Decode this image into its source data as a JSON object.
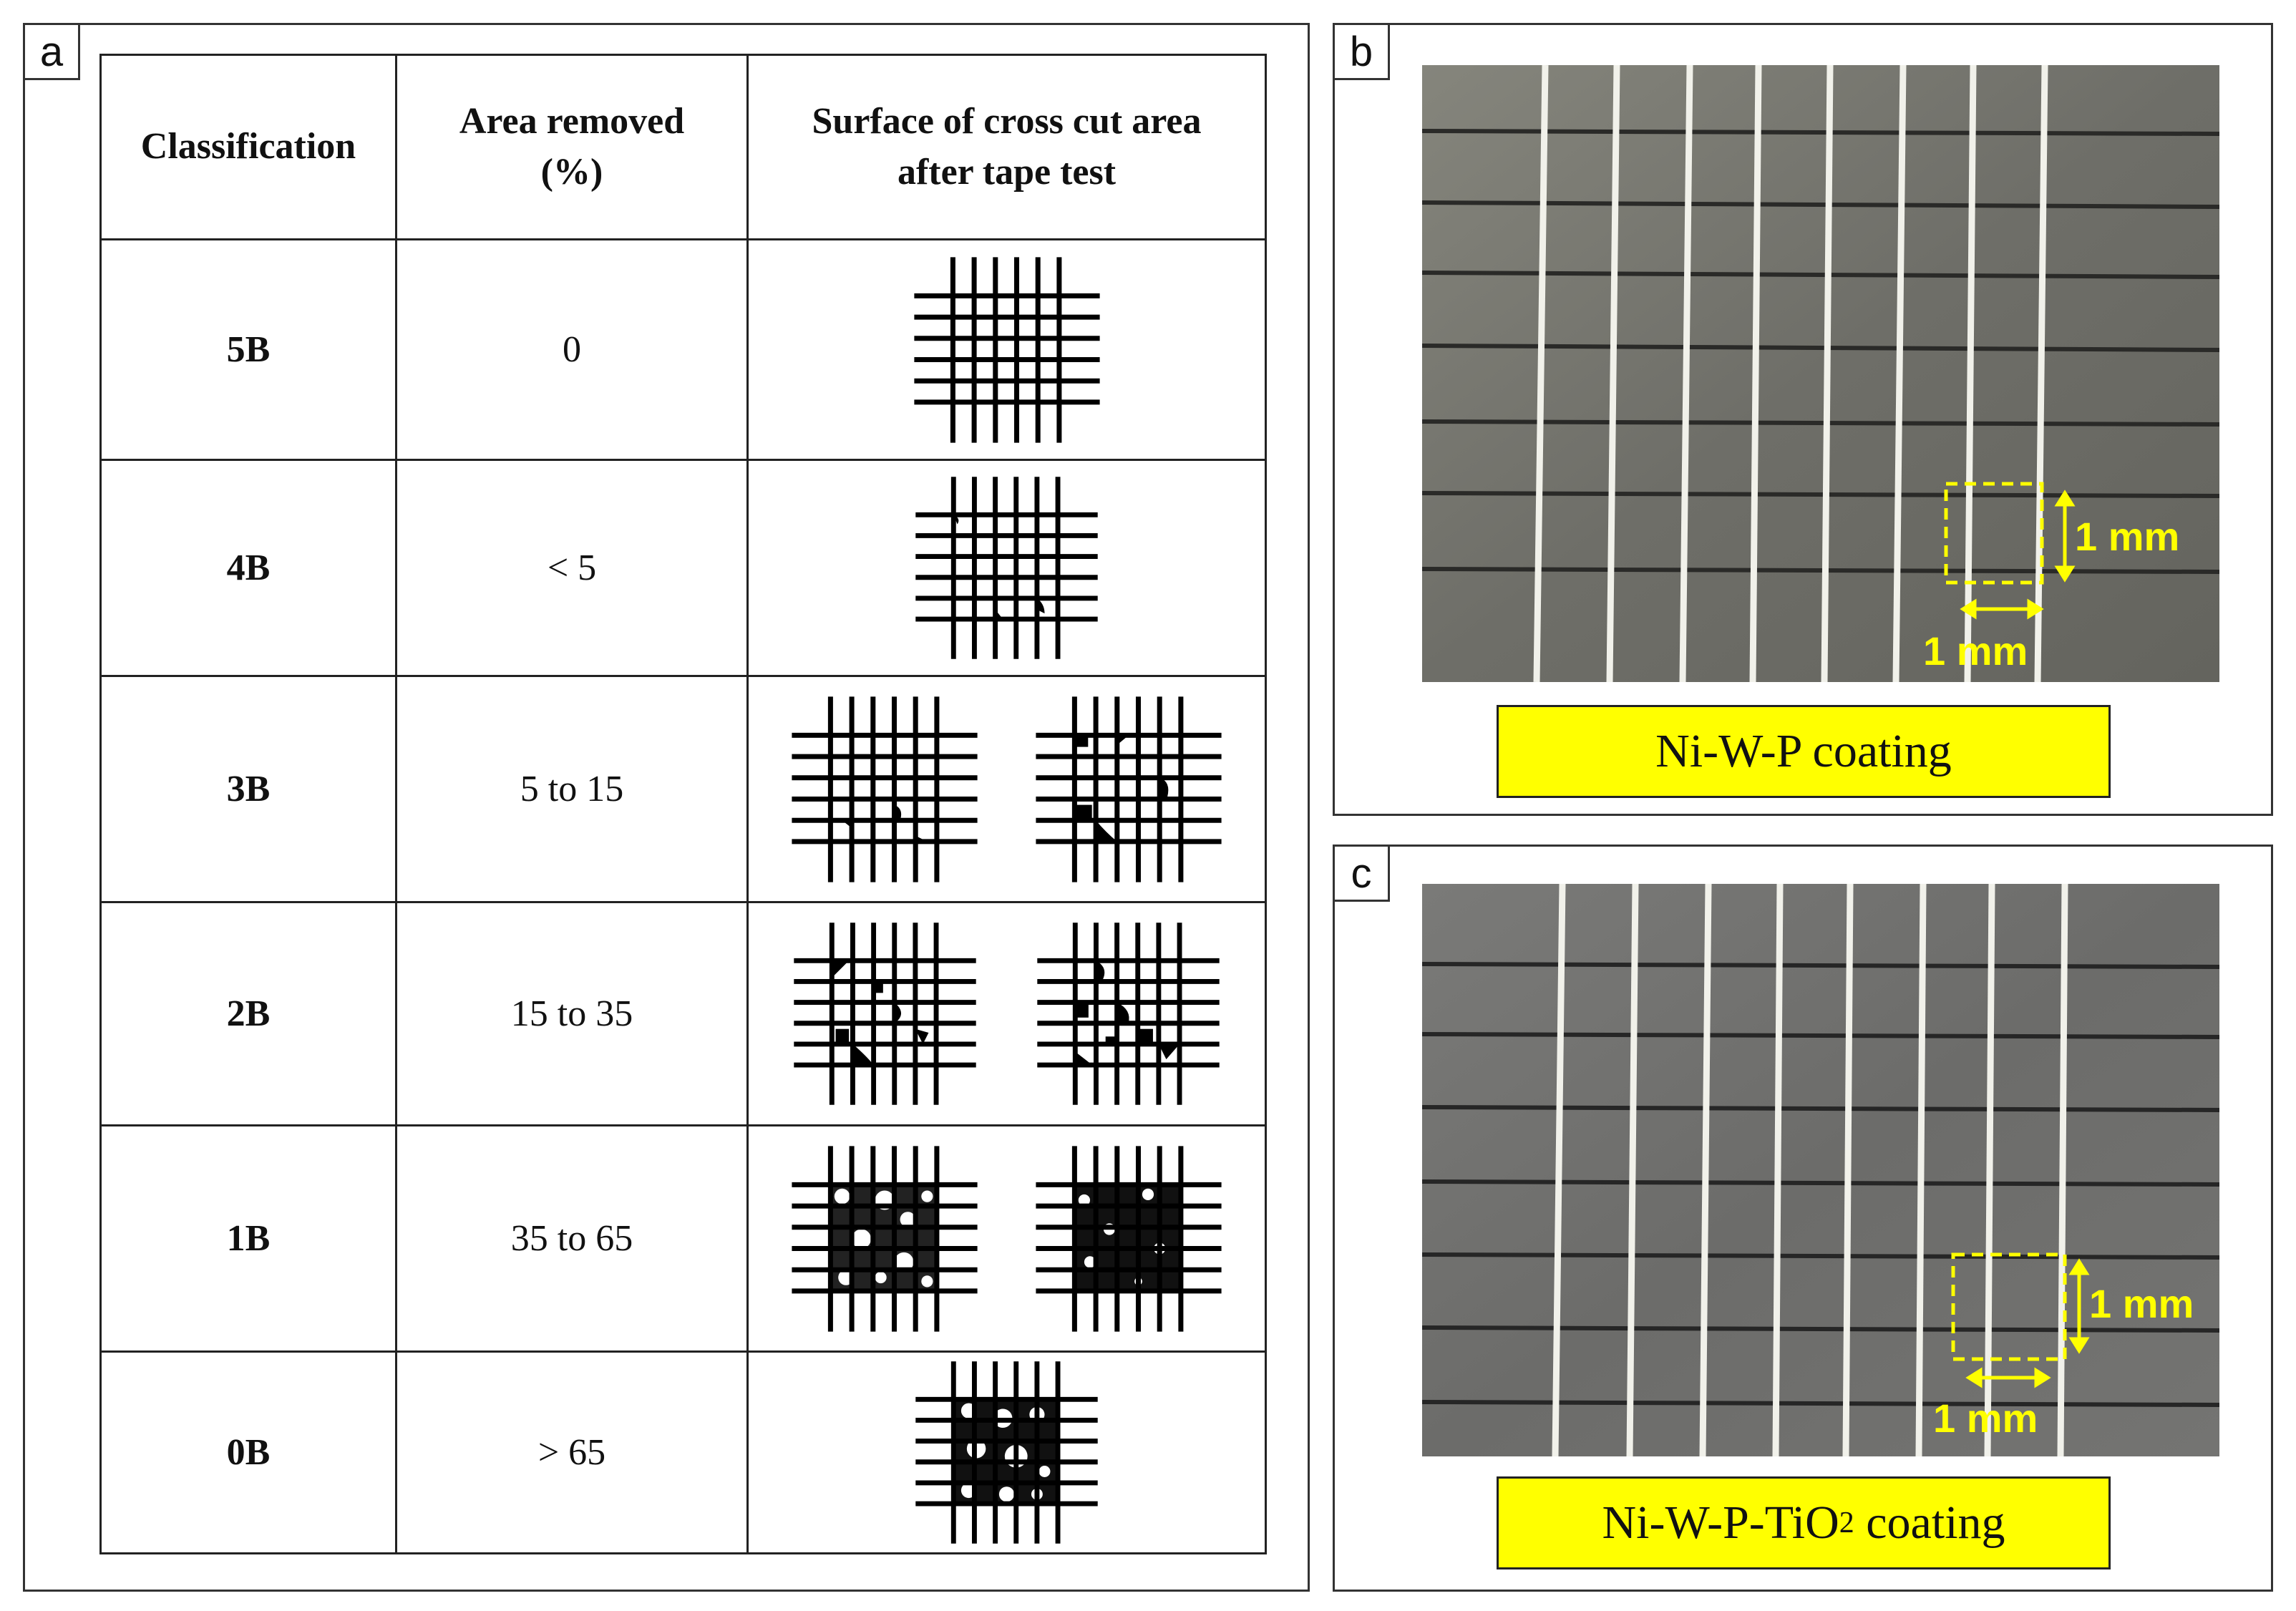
{
  "panel_a": {
    "letter": "a",
    "headers": {
      "classification": "Classification",
      "area_line1": "Area removed",
      "area_line2": "(%)",
      "surface_line1": "Surface of cross cut area",
      "surface_line2": "after tape test"
    },
    "rows": [
      {
        "classification": "5B",
        "area_removed": "0"
      },
      {
        "classification": "4B",
        "area_removed": "< 5"
      },
      {
        "classification": "3B",
        "area_removed": "5 to 15"
      },
      {
        "classification": "2B",
        "area_removed": "15 to 35"
      },
      {
        "classification": "1B",
        "area_removed": "35 to 65"
      },
      {
        "classification": "0B",
        "area_removed": "> 65"
      }
    ]
  },
  "panel_b": {
    "letter": "b",
    "caption": "Ni-W-P coating",
    "scale_vertical": "1 mm",
    "scale_horizontal": "1 mm"
  },
  "panel_c": {
    "letter": "c",
    "caption_main": "Ni-W-P-TiO",
    "caption_sub": "2",
    "caption_tail": " coating",
    "scale_vertical": "1 mm",
    "scale_horizontal": "1 mm"
  },
  "colors": {
    "caption_bg": "#ffff00",
    "scale_color": "#ffff00",
    "photo_surface": "#6f6f6a"
  }
}
